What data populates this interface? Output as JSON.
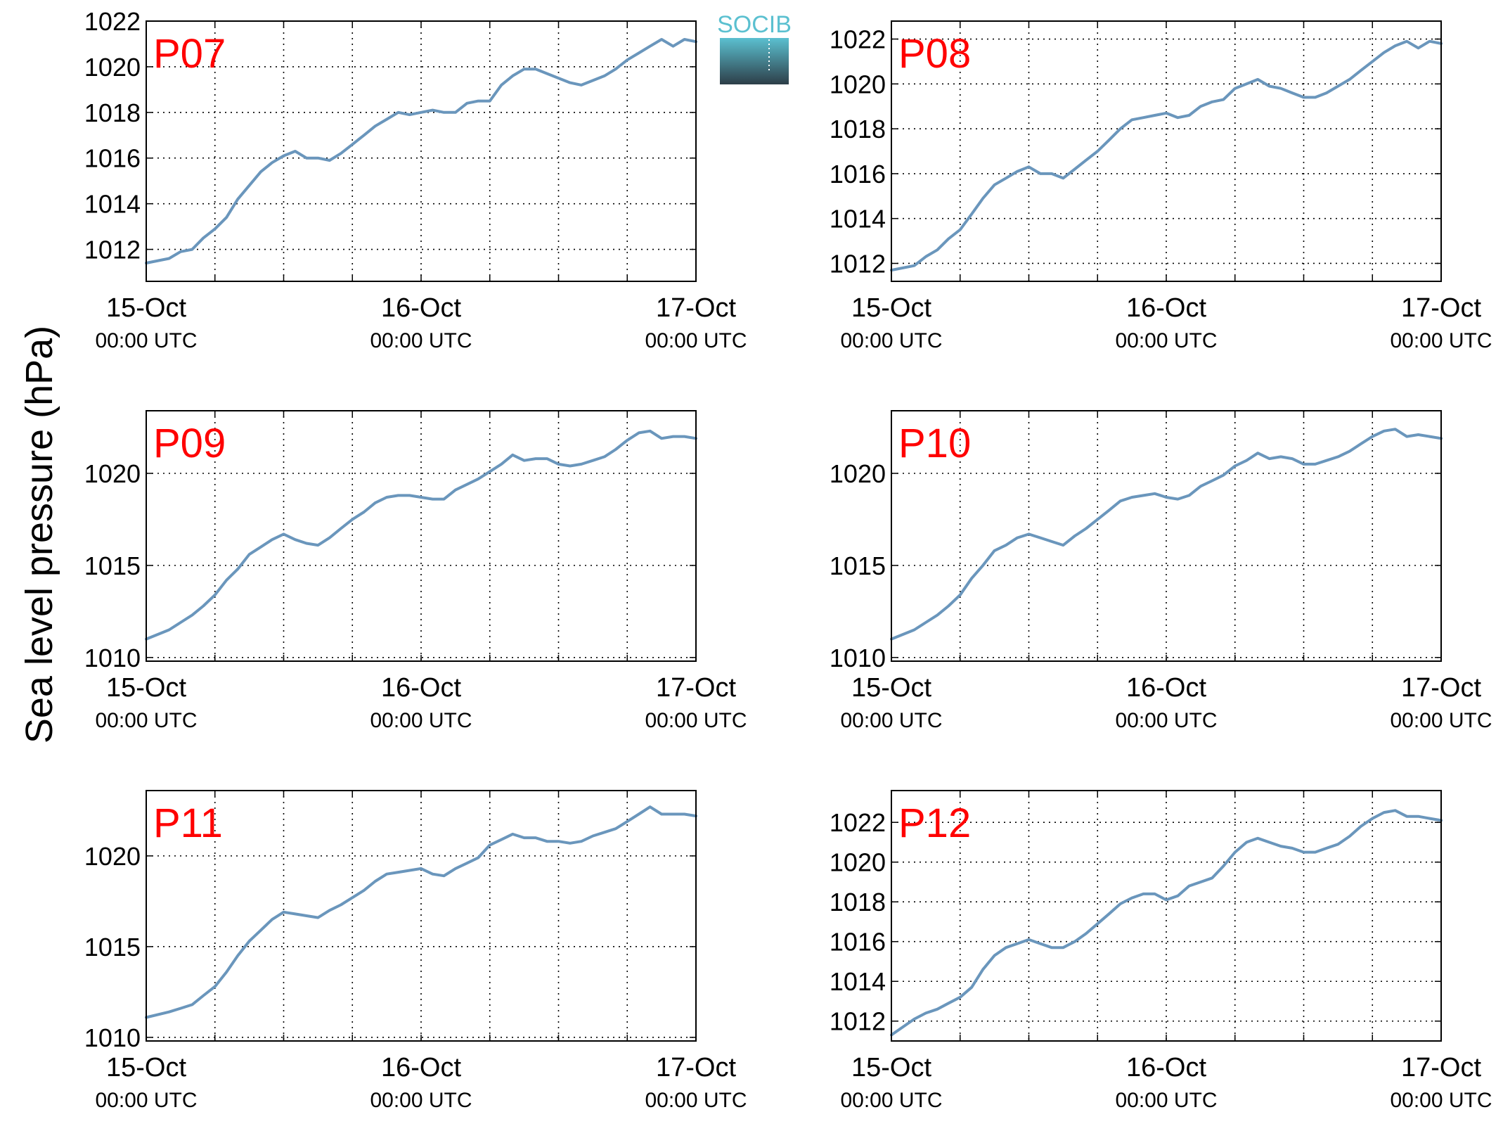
{
  "figure": {
    "ylabel": "Sea level pressure (hPa)",
    "logo_text": "SOCIB",
    "colors": {
      "line": "#6a96bc",
      "label": "#ff0000",
      "logo_top": "#5bc0d0",
      "logo_bottom": "#2d3e48"
    }
  },
  "chart_data": [
    {
      "type": "line",
      "title": "P07",
      "x_ticks": [
        {
          "day": 0,
          "date": "15-Oct",
          "time": "00:00 UTC"
        },
        {
          "day": 1,
          "date": "16-Oct",
          "time": "00:00 UTC"
        },
        {
          "day": 2,
          "date": "17-Oct",
          "time": "00:00 UTC"
        }
      ],
      "xlim": [
        0,
        2
      ],
      "ylim": [
        1010.6,
        1022
      ],
      "yticks": [
        1012,
        1014,
        1016,
        1018,
        1020,
        1022
      ],
      "grid": true,
      "series": [
        {
          "x": [
            0,
            0.083,
            0.125,
            0.167,
            0.208,
            0.25,
            0.292,
            0.333,
            0.375,
            0.417,
            0.458,
            0.5,
            0.542,
            0.583,
            0.625,
            0.667,
            0.708,
            0.75,
            0.792,
            0.833,
            0.875,
            0.917,
            0.958,
            1.0,
            1.042,
            1.083,
            1.125,
            1.167,
            1.208,
            1.25,
            1.292,
            1.333,
            1.375,
            1.417,
            1.458,
            1.5,
            1.542,
            1.583,
            1.625,
            1.667,
            1.708,
            1.75,
            1.792,
            1.833,
            1.875,
            1.917,
            1.958,
            2.0
          ],
          "y": [
            1011.4,
            1011.6,
            1011.9,
            1012.0,
            1012.5,
            1012.9,
            1013.4,
            1014.2,
            1014.8,
            1015.4,
            1015.8,
            1016.1,
            1016.3,
            1016.0,
            1016.0,
            1015.9,
            1016.2,
            1016.6,
            1017.0,
            1017.4,
            1017.7,
            1018.0,
            1017.9,
            1018.0,
            1018.1,
            1018.0,
            1018.0,
            1018.4,
            1018.5,
            1018.5,
            1019.2,
            1019.6,
            1019.9,
            1019.9,
            1019.7,
            1019.5,
            1019.3,
            1019.2,
            1019.4,
            1019.6,
            1019.9,
            1020.3,
            1020.6,
            1020.9,
            1021.2,
            1020.9,
            1021.2,
            1021.1
          ]
        }
      ]
    },
    {
      "type": "line",
      "title": "P08",
      "x_ticks": [
        {
          "day": 0,
          "date": "15-Oct",
          "time": "00:00 UTC"
        },
        {
          "day": 1,
          "date": "16-Oct",
          "time": "00:00 UTC"
        },
        {
          "day": 2,
          "date": "17-Oct",
          "time": "00:00 UTC"
        }
      ],
      "xlim": [
        0,
        2
      ],
      "ylim": [
        1011.2,
        1022.8
      ],
      "yticks": [
        1012,
        1014,
        1016,
        1018,
        1020,
        1022
      ],
      "grid": true,
      "series": [
        {
          "x": [
            0,
            0.083,
            0.125,
            0.167,
            0.208,
            0.25,
            0.292,
            0.333,
            0.375,
            0.417,
            0.458,
            0.5,
            0.542,
            0.583,
            0.625,
            0.667,
            0.708,
            0.75,
            0.792,
            0.833,
            0.875,
            0.917,
            0.958,
            1.0,
            1.042,
            1.083,
            1.125,
            1.167,
            1.208,
            1.25,
            1.292,
            1.333,
            1.375,
            1.417,
            1.458,
            1.5,
            1.542,
            1.583,
            1.625,
            1.667,
            1.708,
            1.75,
            1.792,
            1.833,
            1.875,
            1.917,
            1.958,
            2.0
          ],
          "y": [
            1011.7,
            1011.9,
            1012.3,
            1012.6,
            1013.1,
            1013.5,
            1014.2,
            1014.9,
            1015.5,
            1015.8,
            1016.1,
            1016.3,
            1016.0,
            1016.0,
            1015.8,
            1016.2,
            1016.6,
            1017.0,
            1017.5,
            1018.0,
            1018.4,
            1018.5,
            1018.6,
            1018.7,
            1018.5,
            1018.6,
            1019.0,
            1019.2,
            1019.3,
            1019.8,
            1020.0,
            1020.2,
            1019.9,
            1019.8,
            1019.6,
            1019.4,
            1019.4,
            1019.6,
            1019.9,
            1020.2,
            1020.6,
            1021.0,
            1021.4,
            1021.7,
            1021.9,
            1021.6,
            1021.9,
            1021.8
          ]
        }
      ]
    },
    {
      "type": "line",
      "title": "P09",
      "x_ticks": [
        {
          "day": 0,
          "date": "15-Oct",
          "time": "00:00 UTC"
        },
        {
          "day": 1,
          "date": "16-Oct",
          "time": "00:00 UTC"
        },
        {
          "day": 2,
          "date": "17-Oct",
          "time": "00:00 UTC"
        }
      ],
      "xlim": [
        0,
        2
      ],
      "ylim": [
        1009.8,
        1023.4
      ],
      "yticks": [
        1010,
        1015,
        1020
      ],
      "grid": true,
      "series": [
        {
          "x": [
            0,
            0.083,
            0.125,
            0.167,
            0.208,
            0.25,
            0.292,
            0.333,
            0.375,
            0.417,
            0.458,
            0.5,
            0.542,
            0.583,
            0.625,
            0.667,
            0.708,
            0.75,
            0.792,
            0.833,
            0.875,
            0.917,
            0.958,
            1.0,
            1.042,
            1.083,
            1.125,
            1.167,
            1.208,
            1.25,
            1.292,
            1.333,
            1.375,
            1.417,
            1.458,
            1.5,
            1.542,
            1.583,
            1.625,
            1.667,
            1.708,
            1.75,
            1.792,
            1.833,
            1.875,
            1.917,
            1.958,
            2.0
          ],
          "y": [
            1011.0,
            1011.5,
            1011.9,
            1012.3,
            1012.8,
            1013.4,
            1014.2,
            1014.8,
            1015.6,
            1016.0,
            1016.4,
            1016.7,
            1016.4,
            1016.2,
            1016.1,
            1016.5,
            1017.0,
            1017.5,
            1017.9,
            1018.4,
            1018.7,
            1018.8,
            1018.8,
            1018.7,
            1018.6,
            1018.6,
            1019.1,
            1019.4,
            1019.7,
            1020.1,
            1020.5,
            1021.0,
            1020.7,
            1020.8,
            1020.8,
            1020.5,
            1020.4,
            1020.5,
            1020.7,
            1020.9,
            1021.3,
            1021.8,
            1022.2,
            1022.3,
            1021.9,
            1022.0,
            1022.0,
            1021.9
          ]
        }
      ]
    },
    {
      "type": "line",
      "title": "P10",
      "x_ticks": [
        {
          "day": 0,
          "date": "15-Oct",
          "time": "00:00 UTC"
        },
        {
          "day": 1,
          "date": "16-Oct",
          "time": "00:00 UTC"
        },
        {
          "day": 2,
          "date": "17-Oct",
          "time": "00:00 UTC"
        }
      ],
      "xlim": [
        0,
        2
      ],
      "ylim": [
        1009.8,
        1023.4
      ],
      "yticks": [
        1010,
        1015,
        1020
      ],
      "grid": true,
      "series": [
        {
          "x": [
            0,
            0.083,
            0.125,
            0.167,
            0.208,
            0.25,
            0.292,
            0.333,
            0.375,
            0.417,
            0.458,
            0.5,
            0.542,
            0.583,
            0.625,
            0.667,
            0.708,
            0.75,
            0.792,
            0.833,
            0.875,
            0.917,
            0.958,
            1.0,
            1.042,
            1.083,
            1.125,
            1.167,
            1.208,
            1.25,
            1.292,
            1.333,
            1.375,
            1.417,
            1.458,
            1.5,
            1.542,
            1.583,
            1.625,
            1.667,
            1.708,
            1.75,
            1.792,
            1.833,
            1.875,
            1.917,
            1.958,
            2.0
          ],
          "y": [
            1011.0,
            1011.5,
            1011.9,
            1012.3,
            1012.8,
            1013.4,
            1014.3,
            1015.0,
            1015.8,
            1016.1,
            1016.5,
            1016.7,
            1016.5,
            1016.3,
            1016.1,
            1016.6,
            1017.0,
            1017.5,
            1018.0,
            1018.5,
            1018.7,
            1018.8,
            1018.9,
            1018.7,
            1018.6,
            1018.8,
            1019.3,
            1019.6,
            1019.9,
            1020.4,
            1020.7,
            1021.1,
            1020.8,
            1020.9,
            1020.8,
            1020.5,
            1020.5,
            1020.7,
            1020.9,
            1021.2,
            1021.6,
            1022.0,
            1022.3,
            1022.4,
            1022.0,
            1022.1,
            1022.0,
            1021.9
          ]
        }
      ]
    },
    {
      "type": "line",
      "title": "P11",
      "x_ticks": [
        {
          "day": 0,
          "date": "15-Oct",
          "time": "00:00 UTC"
        },
        {
          "day": 1,
          "date": "16-Oct",
          "time": "00:00 UTC"
        },
        {
          "day": 2,
          "date": "17-Oct",
          "time": "00:00 UTC"
        }
      ],
      "xlim": [
        0,
        2
      ],
      "ylim": [
        1009.8,
        1023.6
      ],
      "yticks": [
        1010,
        1015,
        1020
      ],
      "grid": true,
      "series": [
        {
          "x": [
            0,
            0.083,
            0.125,
            0.167,
            0.208,
            0.25,
            0.292,
            0.333,
            0.375,
            0.417,
            0.458,
            0.5,
            0.542,
            0.583,
            0.625,
            0.667,
            0.708,
            0.75,
            0.792,
            0.833,
            0.875,
            0.917,
            0.958,
            1.0,
            1.042,
            1.083,
            1.125,
            1.167,
            1.208,
            1.25,
            1.292,
            1.333,
            1.375,
            1.417,
            1.458,
            1.5,
            1.542,
            1.583,
            1.625,
            1.667,
            1.708,
            1.75,
            1.792,
            1.833,
            1.875,
            1.917,
            1.958,
            2.0
          ],
          "y": [
            1011.1,
            1011.4,
            1011.6,
            1011.8,
            1012.3,
            1012.8,
            1013.6,
            1014.5,
            1015.3,
            1015.9,
            1016.5,
            1016.9,
            1016.8,
            1016.7,
            1016.6,
            1017.0,
            1017.3,
            1017.7,
            1018.1,
            1018.6,
            1019.0,
            1019.1,
            1019.2,
            1019.3,
            1019.0,
            1018.9,
            1019.3,
            1019.6,
            1019.9,
            1020.6,
            1020.9,
            1021.2,
            1021.0,
            1021.0,
            1020.8,
            1020.8,
            1020.7,
            1020.8,
            1021.1,
            1021.3,
            1021.5,
            1021.9,
            1022.3,
            1022.7,
            1022.3,
            1022.3,
            1022.3,
            1022.2
          ]
        }
      ]
    },
    {
      "type": "line",
      "title": "P12",
      "x_ticks": [
        {
          "day": 0,
          "date": "15-Oct",
          "time": "00:00 UTC"
        },
        {
          "day": 1,
          "date": "16-Oct",
          "time": "00:00 UTC"
        },
        {
          "day": 2,
          "date": "17-Oct",
          "time": "00:00 UTC"
        }
      ],
      "xlim": [
        0,
        2
      ],
      "ylim": [
        1011.0,
        1023.6
      ],
      "yticks": [
        1012,
        1014,
        1016,
        1018,
        1020,
        1022
      ],
      "grid": true,
      "series": [
        {
          "x": [
            0,
            0.083,
            0.125,
            0.167,
            0.208,
            0.25,
            0.292,
            0.333,
            0.375,
            0.417,
            0.458,
            0.5,
            0.542,
            0.583,
            0.625,
            0.667,
            0.708,
            0.75,
            0.792,
            0.833,
            0.875,
            0.917,
            0.958,
            1.0,
            1.042,
            1.083,
            1.125,
            1.167,
            1.208,
            1.25,
            1.292,
            1.333,
            1.375,
            1.417,
            1.458,
            1.5,
            1.542,
            1.583,
            1.625,
            1.667,
            1.708,
            1.75,
            1.792,
            1.833,
            1.875,
            1.917,
            1.958,
            2.0
          ],
          "y": [
            1011.3,
            1012.1,
            1012.4,
            1012.6,
            1012.9,
            1013.2,
            1013.7,
            1014.6,
            1015.3,
            1015.7,
            1015.9,
            1016.1,
            1015.9,
            1015.7,
            1015.7,
            1016.0,
            1016.4,
            1016.9,
            1017.4,
            1017.9,
            1018.2,
            1018.4,
            1018.4,
            1018.1,
            1018.3,
            1018.8,
            1019.0,
            1019.2,
            1019.8,
            1020.5,
            1021.0,
            1021.2,
            1021.0,
            1020.8,
            1020.7,
            1020.5,
            1020.5,
            1020.7,
            1020.9,
            1021.3,
            1021.8,
            1022.2,
            1022.5,
            1022.6,
            1022.3,
            1022.3,
            1022.2,
            1022.1
          ]
        }
      ]
    }
  ]
}
